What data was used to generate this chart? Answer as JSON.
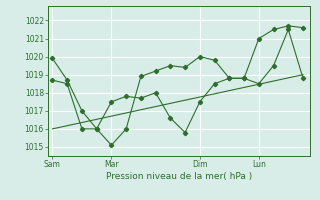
{
  "xlabel": "Pression niveau de la mer( hPa )",
  "bg_color": "#d8ede8",
  "grid_color": "#ffffff",
  "line_color": "#2d6e2d",
  "ylim": [
    1014.5,
    1022.8
  ],
  "yticks": [
    1015,
    1016,
    1017,
    1018,
    1019,
    1020,
    1021,
    1022
  ],
  "day_labels": [
    "Sam",
    "Mar",
    "Dim",
    "Lun"
  ],
  "day_positions": [
    0,
    4,
    10,
    14
  ],
  "xlim": [
    -0.3,
    17.5
  ],
  "series1_x": [
    0,
    1,
    2,
    3,
    4,
    5,
    6,
    7,
    8,
    9,
    10,
    11,
    12,
    13,
    14,
    15,
    16,
    17
  ],
  "series1_y": [
    1019.9,
    1018.7,
    1017.0,
    1016.0,
    1015.1,
    1016.0,
    1018.9,
    1019.2,
    1019.5,
    1019.4,
    1020.0,
    1019.8,
    1018.8,
    1018.8,
    1021.0,
    1021.5,
    1021.7,
    1021.6
  ],
  "series2_x": [
    0,
    1,
    2,
    3,
    4,
    5,
    6,
    7,
    8,
    9,
    10,
    11,
    12,
    13,
    14,
    15,
    16,
    17
  ],
  "series2_y": [
    1018.7,
    1018.5,
    1016.0,
    1016.0,
    1017.5,
    1017.8,
    1017.7,
    1018.0,
    1016.6,
    1015.8,
    1017.5,
    1018.5,
    1018.8,
    1018.8,
    1018.5,
    1019.5,
    1021.5,
    1018.8
  ],
  "trend_x": [
    0,
    17
  ],
  "trend_y": [
    1016.0,
    1019.0
  ],
  "label_fontsize": 5.5,
  "xlabel_fontsize": 6.5
}
